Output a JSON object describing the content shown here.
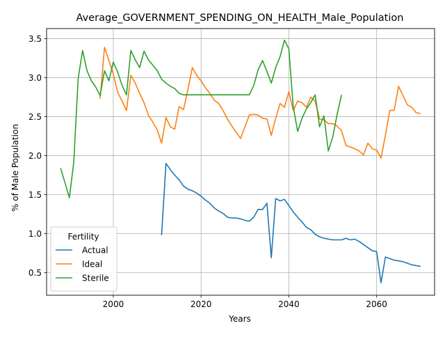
{
  "chart_data": {
    "type": "line",
    "title": "Average_GOVERNMENT_SPENDING_ON_HEALTH_Male_Population",
    "xlabel": "Years",
    "ylabel": "% of Male Population",
    "xlim": [
      1984.8,
      2073.2
    ],
    "ylim": [
      0.21,
      3.63
    ],
    "xticks": [
      2000,
      2020,
      2040,
      2060
    ],
    "yticks": [
      0.5,
      1.0,
      1.5,
      2.0,
      2.5,
      3.0,
      3.5
    ],
    "xtick_labels": [
      "2000",
      "2020",
      "2040",
      "2060"
    ],
    "ytick_labels": [
      "0.5",
      "1.0",
      "1.5",
      "2.0",
      "2.5",
      "3.0",
      "3.5"
    ],
    "grid": true,
    "legend": {
      "title": "Fertility",
      "position": "lower left"
    },
    "colors": {
      "Actual": "#1f77b4",
      "Ideal": "#ff7f0e",
      "Sterile": "#2ca02c"
    },
    "series": [
      {
        "name": "Actual",
        "x": [
          2011,
          2012,
          2013,
          2014,
          2015,
          2016,
          2017,
          2018,
          2019,
          2020,
          2021,
          2022,
          2023,
          2024,
          2025,
          2026,
          2027,
          2028,
          2029,
          2030,
          2031,
          2032,
          2033,
          2034,
          2035,
          2036,
          2037,
          2038,
          2039,
          2040,
          2041,
          2042,
          2043,
          2044,
          2045,
          2046,
          2047,
          2048,
          2049,
          2050,
          2051,
          2052,
          2053,
          2054,
          2055,
          2056,
          2057,
          2058,
          2059,
          2060,
          2061,
          2062,
          2063,
          2064,
          2065,
          2066,
          2067,
          2068,
          2069,
          2070
        ],
        "y": [
          0.98,
          1.9,
          1.82,
          1.75,
          1.69,
          1.61,
          1.57,
          1.55,
          1.52,
          1.48,
          1.43,
          1.39,
          1.33,
          1.29,
          1.26,
          1.21,
          1.2,
          1.2,
          1.19,
          1.17,
          1.16,
          1.21,
          1.31,
          1.31,
          1.39,
          0.69,
          1.45,
          1.42,
          1.44,
          1.36,
          1.28,
          1.21,
          1.15,
          1.08,
          1.05,
          0.99,
          0.96,
          0.94,
          0.93,
          0.92,
          0.92,
          0.92,
          0.94,
          0.92,
          0.93,
          0.9,
          0.86,
          0.82,
          0.78,
          0.77,
          0.37,
          0.7,
          0.68,
          0.66,
          0.65,
          0.64,
          0.62,
          0.6,
          0.59,
          0.58
        ]
      },
      {
        "name": "Ideal",
        "x": [
          1997,
          1998,
          1999,
          2000,
          2001,
          2002,
          2003,
          2004,
          2005,
          2006,
          2007,
          2008,
          2009,
          2010,
          2011,
          2012,
          2013,
          2014,
          2015,
          2016,
          2017,
          2018,
          2019,
          2020,
          2021,
          2022,
          2023,
          2024,
          2025,
          2026,
          2027,
          2028,
          2029,
          2030,
          2031,
          2032,
          2033,
          2034,
          2035,
          2036,
          2037,
          2038,
          2039,
          2040,
          2041,
          2042,
          2043,
          2044,
          2045,
          2046,
          2047,
          2048,
          2049,
          2050,
          2051,
          2052,
          2053,
          2054,
          2055,
          2056,
          2057,
          2058,
          2059,
          2060,
          2061,
          2062,
          2063,
          2064,
          2065,
          2066,
          2067,
          2068,
          2069,
          2070
        ],
        "y": [
          2.73,
          3.39,
          3.22,
          3.05,
          2.81,
          2.7,
          2.58,
          3.03,
          2.93,
          2.8,
          2.68,
          2.52,
          2.43,
          2.33,
          2.16,
          2.49,
          2.37,
          2.34,
          2.63,
          2.59,
          2.85,
          3.13,
          3.03,
          2.96,
          2.87,
          2.8,
          2.71,
          2.67,
          2.58,
          2.47,
          2.38,
          2.3,
          2.22,
          2.37,
          2.52,
          2.53,
          2.52,
          2.48,
          2.47,
          2.26,
          2.48,
          2.67,
          2.62,
          2.82,
          2.58,
          2.7,
          2.68,
          2.62,
          2.75,
          2.7,
          2.47,
          2.46,
          2.41,
          2.41,
          2.38,
          2.32,
          2.13,
          2.11,
          2.09,
          2.06,
          2.01,
          2.16,
          2.09,
          2.07,
          1.97,
          2.26,
          2.58,
          2.58,
          2.89,
          2.77,
          2.65,
          2.62,
          2.55,
          2.54
        ]
      },
      {
        "name": "Sterile",
        "x": [
          1988,
          1989,
          1990,
          1991,
          1992,
          1993,
          1994,
          1995,
          1996,
          1997,
          1998,
          1999,
          2000,
          2001,
          2002,
          2003,
          2004,
          2005,
          2006,
          2007,
          2008,
          2009,
          2010,
          2011,
          2012,
          2013,
          2014,
          2015,
          2016,
          2017,
          2018,
          2019,
          2020,
          2021,
          2022,
          2023,
          2024,
          2025,
          2026,
          2027,
          2028,
          2029,
          2030,
          2031,
          2032,
          2033,
          2034,
          2035,
          2036,
          2037,
          2038,
          2039,
          2040,
          2041,
          2042,
          2043,
          2044,
          2045,
          2046,
          2047,
          2048,
          2049,
          2050,
          2051,
          2052
        ],
        "y": [
          1.84,
          1.65,
          1.46,
          1.92,
          2.99,
          3.35,
          3.09,
          2.96,
          2.88,
          2.77,
          3.09,
          2.96,
          3.2,
          3.07,
          2.9,
          2.78,
          3.35,
          3.23,
          3.13,
          3.34,
          3.23,
          3.16,
          3.09,
          2.98,
          2.93,
          2.89,
          2.86,
          2.8,
          2.78,
          2.78,
          2.78,
          2.78,
          2.78,
          2.78,
          2.78,
          2.78,
          2.78,
          2.78,
          2.78,
          2.78,
          2.78,
          2.78,
          2.78,
          2.78,
          2.9,
          3.1,
          3.22,
          3.08,
          2.93,
          3.13,
          3.27,
          3.48,
          3.37,
          2.63,
          2.31,
          2.48,
          2.6,
          2.68,
          2.78,
          2.37,
          2.51,
          2.06,
          2.24,
          2.53,
          2.78
        ]
      }
    ]
  }
}
